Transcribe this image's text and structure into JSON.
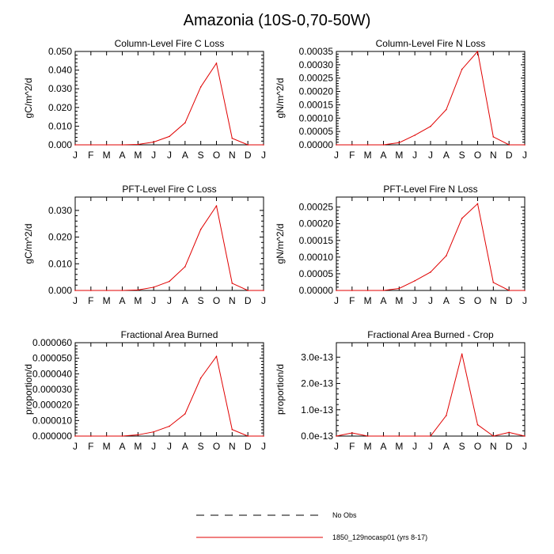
{
  "title": "Amazonia (10S-0,70-50W)",
  "legend": {
    "entries": [
      {
        "label": "No Obs",
        "style": "dashed",
        "color": "#000000"
      },
      {
        "label": "1850_129nocasp01 (yrs 8-17)",
        "style": "solid",
        "color": "#e00000"
      }
    ]
  },
  "chart_data": [
    {
      "type": "line",
      "title": "Column-Level Fire C Loss",
      "ylabel": "gC/m^2/d",
      "xlabel": "",
      "categories": [
        "J",
        "F",
        "M",
        "A",
        "M",
        "J",
        "J",
        "A",
        "S",
        "O",
        "N",
        "D",
        "J"
      ],
      "ylim": [
        0,
        0.05
      ],
      "yticks": [
        0,
        0.01,
        0.02,
        0.03,
        0.04,
        0.05
      ],
      "ytick_labels": [
        "0.000",
        "0.010",
        "0.020",
        "0.030",
        "0.040",
        "0.050"
      ],
      "series": [
        {
          "name": "1850_129nocasp01 (yrs 8-17)",
          "color": "#e00000",
          "values": [
            0,
            0,
            0,
            0,
            0.0002,
            0.0015,
            0.0045,
            0.0118,
            0.031,
            0.0437,
            0.0035,
            0,
            0
          ]
        }
      ]
    },
    {
      "type": "line",
      "title": "Column-Level Fire N Loss",
      "ylabel": "gN/m^2/d",
      "xlabel": "",
      "categories": [
        "J",
        "F",
        "M",
        "A",
        "M",
        "J",
        "J",
        "A",
        "S",
        "O",
        "N",
        "D",
        "J"
      ],
      "ylim": [
        0,
        0.00035
      ],
      "yticks": [
        0,
        5e-05,
        0.0001,
        0.00015,
        0.0002,
        0.00025,
        0.0003,
        0.00035
      ],
      "ytick_labels": [
        "0.00000",
        "0.00005",
        "0.00010",
        "0.00015",
        "0.00020",
        "0.00025",
        "0.00030",
        "0.00035"
      ],
      "series": [
        {
          "name": "1850_129nocasp01 (yrs 8-17)",
          "color": "#e00000",
          "values": [
            0,
            0,
            0,
            0,
            8e-06,
            3.6e-05,
            6.9e-05,
            0.000132,
            0.000283,
            0.00035,
            3e-05,
            0,
            0
          ]
        }
      ]
    },
    {
      "type": "line",
      "title": "PFT-Level Fire C Loss",
      "ylabel": "gC/m^2/d",
      "xlabel": "",
      "categories": [
        "J",
        "F",
        "M",
        "A",
        "M",
        "J",
        "J",
        "A",
        "S",
        "O",
        "N",
        "D",
        "J"
      ],
      "ylim": [
        0,
        0.035
      ],
      "yticks": [
        0,
        0.01,
        0.02,
        0.03
      ],
      "ytick_labels": [
        "0.000",
        "0.010",
        "0.020",
        "0.030"
      ],
      "series": [
        {
          "name": "1850_129nocasp01 (yrs 8-17)",
          "color": "#e00000",
          "values": [
            0,
            0,
            0,
            0,
            0.0002,
            0.0012,
            0.0034,
            0.0089,
            0.0229,
            0.0317,
            0.0027,
            0,
            0
          ]
        }
      ]
    },
    {
      "type": "line",
      "title": "PFT-Level Fire N Loss",
      "ylabel": "gN/m^2/d",
      "xlabel": "",
      "categories": [
        "J",
        "F",
        "M",
        "A",
        "M",
        "J",
        "J",
        "A",
        "S",
        "O",
        "N",
        "D",
        "J"
      ],
      "ylim": [
        0,
        0.00028
      ],
      "yticks": [
        0,
        5e-05,
        0.0001,
        0.00015,
        0.0002,
        0.00025
      ],
      "ytick_labels": [
        "0.00000",
        "0.00005",
        "0.00010",
        "0.00015",
        "0.00020",
        "0.00025"
      ],
      "series": [
        {
          "name": "1850_129nocasp01 (yrs 8-17)",
          "color": "#e00000",
          "values": [
            0,
            0,
            0,
            0,
            6e-06,
            2.9e-05,
            5.5e-05,
            0.000104,
            0.000216,
            0.00026,
            2.4e-05,
            0,
            0
          ]
        }
      ]
    },
    {
      "type": "line",
      "title": "Fractional Area Burned",
      "ylabel": "proportion/d",
      "xlabel": "",
      "categories": [
        "J",
        "F",
        "M",
        "A",
        "M",
        "J",
        "J",
        "A",
        "S",
        "O",
        "N",
        "D",
        "J"
      ],
      "ylim": [
        0,
        6e-05
      ],
      "yticks": [
        0,
        1e-05,
        2e-05,
        3e-05,
        4e-05,
        5e-05,
        6e-05
      ],
      "ytick_labels": [
        "0.000000",
        "0.000010",
        "0.000020",
        "0.000030",
        "0.000040",
        "0.000050",
        "0.000060"
      ],
      "series": [
        {
          "name": "1850_129nocasp01 (yrs 8-17)",
          "color": "#e00000",
          "values": [
            0,
            0,
            0,
            0,
            8e-07,
            2.7e-06,
            6.3e-06,
            1.43e-05,
            3.73e-05,
            5.12e-05,
            4.2e-06,
            0,
            0
          ]
        }
      ]
    },
    {
      "type": "line",
      "title": "Fractional Area Burned - Crop",
      "ylabel": "proportion/d",
      "xlabel": "",
      "categories": [
        "J",
        "F",
        "M",
        "A",
        "M",
        "J",
        "J",
        "A",
        "S",
        "O",
        "N",
        "D",
        "J"
      ],
      "ylim": [
        0,
        3.55e-13
      ],
      "yticks": [
        0,
        1e-13,
        2e-13,
        3e-13
      ],
      "ytick_labels": [
        "0.0e-13",
        "1.0e-13",
        "2.0e-13",
        "3.0e-13"
      ],
      "series": [
        {
          "name": "1850_129nocasp01 (yrs 8-17)",
          "color": "#e00000",
          "values": [
            0,
            1.2e-14,
            0,
            0,
            0,
            0,
            0,
            7.8e-14,
            3.12e-13,
            4.3e-14,
            0,
            1.4e-14,
            0
          ]
        }
      ]
    }
  ]
}
